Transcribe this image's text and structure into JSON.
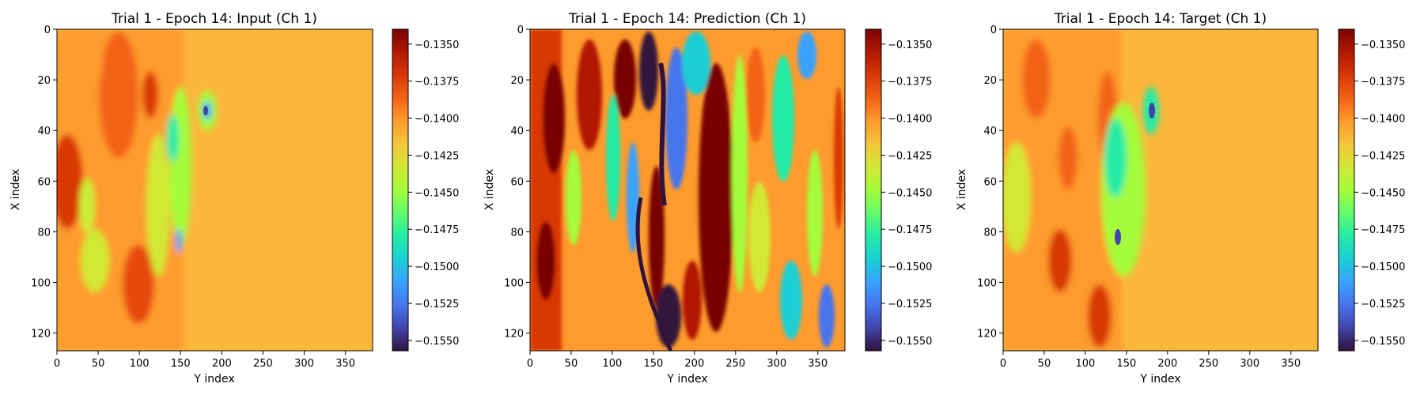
{
  "figure": {
    "colormap": "turbo",
    "colors": {
      "background": "#ffffff",
      "axis": "#000000",
      "colormap_stops": [
        "#30123b",
        "#4145ab",
        "#4675ed",
        "#39a2fc",
        "#1bcfd4",
        "#24eca6",
        "#61fc6c",
        "#a4fc3b",
        "#d1e834",
        "#f3c63a",
        "#fe9b2d",
        "#f36315",
        "#d93806",
        "#b11901",
        "#7a0402"
      ]
    }
  },
  "chart_data": [
    {
      "type": "heatmap",
      "title": "Trial 1 - Epoch 14: Input (Ch 1)",
      "xlabel": "Y index",
      "ylabel": "X index",
      "xlim": [
        0,
        383
      ],
      "ylim": [
        127,
        0
      ],
      "xticks": [
        0,
        50,
        100,
        150,
        200,
        250,
        300,
        350
      ],
      "yticks": [
        0,
        20,
        40,
        60,
        80,
        100,
        120
      ],
      "colorbar": {
        "vmin": -0.1557,
        "vmax": -0.134,
        "ticks": [
          "-0.1350",
          "-0.1375",
          "-0.1400",
          "-0.1425",
          "-0.1450",
          "-0.1475",
          "-0.1500",
          "-0.1525",
          "-0.1550"
        ]
      },
      "grid": false
    },
    {
      "type": "heatmap",
      "title": "Trial 1 - Epoch 14: Prediction (Ch 1)",
      "xlabel": "Y index",
      "ylabel": "X index",
      "xlim": [
        0,
        383
      ],
      "ylim": [
        127,
        0
      ],
      "xticks": [
        0,
        50,
        100,
        150,
        200,
        250,
        300,
        350
      ],
      "yticks": [
        0,
        20,
        40,
        60,
        80,
        100,
        120
      ],
      "colorbar": {
        "vmin": -0.1557,
        "vmax": -0.134,
        "ticks": [
          "-0.1350",
          "-0.1375",
          "-0.1400",
          "-0.1425",
          "-0.1450",
          "-0.1475",
          "-0.1500",
          "-0.1525",
          "-0.1550"
        ]
      },
      "grid": false
    },
    {
      "type": "heatmap",
      "title": "Trial 1 - Epoch 14: Target (Ch 1)",
      "xlabel": "Y index",
      "ylabel": "X index",
      "xlim": [
        0,
        383
      ],
      "ylim": [
        127,
        0
      ],
      "xticks": [
        0,
        50,
        100,
        150,
        200,
        250,
        300,
        350
      ],
      "yticks": [
        0,
        20,
        40,
        60,
        80,
        100,
        120
      ],
      "colorbar": {
        "vmin": -0.1557,
        "vmax": -0.134,
        "ticks": [
          "-0.1350",
          "-0.1375",
          "-0.1400",
          "-0.1425",
          "-0.1450",
          "-0.1475",
          "-0.1500",
          "-0.1525",
          "-0.1550"
        ]
      },
      "grid": false
    }
  ]
}
